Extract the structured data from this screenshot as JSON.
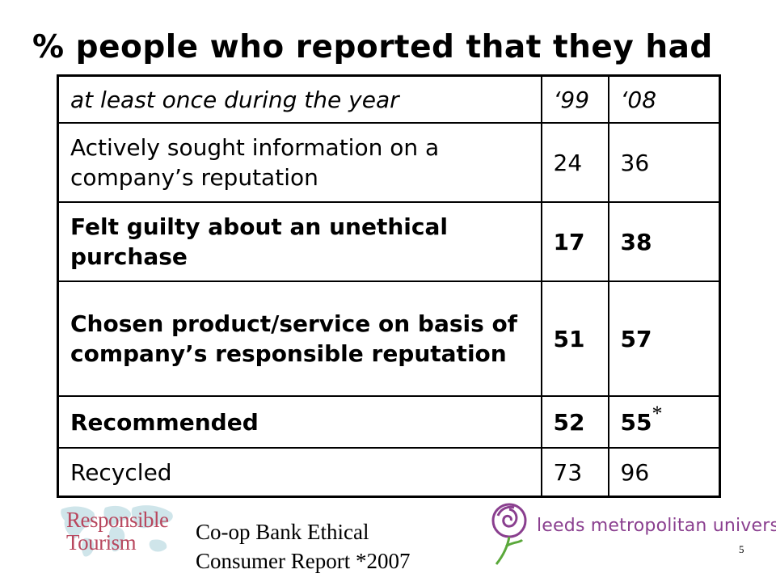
{
  "title": "% people who reported that they had",
  "table": {
    "header": {
      "label": "at least once during the year",
      "col1": "‘99",
      "col2": "‘08"
    },
    "rows": [
      {
        "label": "Actively sought information on a company’s reputation",
        "v99": "24",
        "v08": "36",
        "bold": false,
        "note": ""
      },
      {
        "label": "Felt guilty about an unethical purchase",
        "v99": "17",
        "v08": "38",
        "bold": true,
        "note": ""
      },
      {
        "label": "Chosen product/service on basis of company’s responsible reputation",
        "v99": "51",
        "v08": "57",
        "bold": true,
        "note": ""
      },
      {
        "label": "Recommended",
        "v99": "52",
        "v08": "55",
        "bold": true,
        "note": "*"
      },
      {
        "label": "Recycled",
        "v99": "73",
        "v08": "96",
        "bold": false,
        "note": ""
      }
    ]
  },
  "footer": {
    "responsible_logo": {
      "line1": "Responsible",
      "line2": "Tourism"
    },
    "source_line1": "Co-op Bank Ethical",
    "source_line2": "Consumer Report *2007",
    "university_logo_text": "leeds metropolitan university",
    "slide_number": "5"
  },
  "colors": {
    "responsible_logo": "#b8475e",
    "university_logo": "#8a3f8f",
    "map": "#cfe5ea"
  }
}
